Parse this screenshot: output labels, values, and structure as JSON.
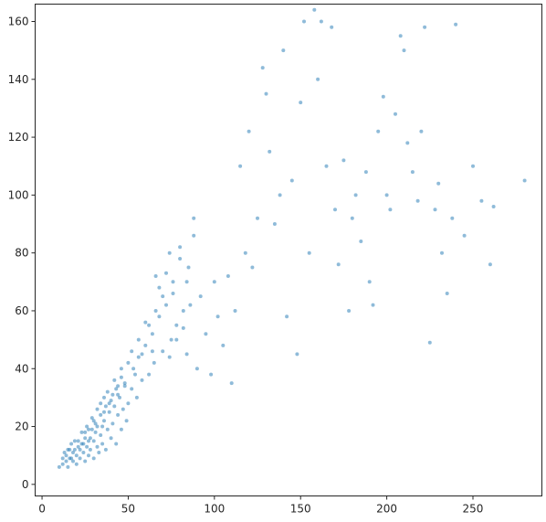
{
  "chart_data": {
    "type": "scatter",
    "title": "",
    "xlabel": "",
    "ylabel": "",
    "xlim": [
      -4,
      290
    ],
    "ylim": [
      -4,
      166
    ],
    "x_ticks": [
      0,
      50,
      100,
      150,
      200,
      250
    ],
    "y_ticks": [
      0,
      20,
      40,
      60,
      80,
      100,
      120,
      140,
      160
    ],
    "grid": false,
    "legend": "none",
    "marker_color": "#1f77b4",
    "marker_alpha": 0.5,
    "series": [
      {
        "values_note": "",
        "points": [
          [
            10,
            6
          ],
          [
            12,
            7
          ],
          [
            14,
            8
          ],
          [
            15,
            6
          ],
          [
            16,
            9
          ],
          [
            18,
            8
          ],
          [
            18,
            11
          ],
          [
            20,
            10
          ],
          [
            20,
            7
          ],
          [
            22,
            12
          ],
          [
            22,
            9
          ],
          [
            24,
            11
          ],
          [
            24,
            14
          ],
          [
            25,
            8
          ],
          [
            26,
            13
          ],
          [
            27,
            10
          ],
          [
            28,
            16
          ],
          [
            28,
            12
          ],
          [
            30,
            15
          ],
          [
            30,
            9
          ],
          [
            31,
            18
          ],
          [
            32,
            13
          ],
          [
            33,
            11
          ],
          [
            34,
            17
          ],
          [
            35,
            20
          ],
          [
            35,
            14
          ],
          [
            36,
            22
          ],
          [
            37,
            12
          ],
          [
            38,
            19
          ],
          [
            39,
            25
          ],
          [
            40,
            16
          ],
          [
            41,
            21
          ],
          [
            42,
            27
          ],
          [
            43,
            14
          ],
          [
            44,
            24
          ],
          [
            45,
            30
          ],
          [
            46,
            19
          ],
          [
            47,
            26
          ],
          [
            48,
            35
          ],
          [
            49,
            22
          ],
          [
            50,
            28
          ],
          [
            52,
            33
          ],
          [
            53,
            40
          ],
          [
            55,
            30
          ],
          [
            56,
            44
          ],
          [
            58,
            36
          ],
          [
            60,
            48
          ],
          [
            62,
            38
          ],
          [
            64,
            52
          ],
          [
            65,
            42
          ],
          [
            66,
            72
          ],
          [
            68,
            58
          ],
          [
            70,
            46
          ],
          [
            72,
            62
          ],
          [
            74,
            80
          ],
          [
            75,
            50
          ],
          [
            76,
            70
          ],
          [
            78,
            55
          ],
          [
            80,
            82
          ],
          [
            82,
            60
          ],
          [
            84,
            45
          ],
          [
            85,
            75
          ],
          [
            88,
            92
          ],
          [
            90,
            40
          ],
          [
            92,
            65
          ],
          [
            95,
            52
          ],
          [
            98,
            38
          ],
          [
            100,
            70
          ],
          [
            102,
            58
          ],
          [
            105,
            48
          ],
          [
            108,
            72
          ],
          [
            110,
            35
          ],
          [
            112,
            60
          ],
          [
            115,
            110
          ],
          [
            118,
            80
          ],
          [
            120,
            122
          ],
          [
            122,
            75
          ],
          [
            125,
            92
          ],
          [
            128,
            144
          ],
          [
            130,
            135
          ],
          [
            132,
            115
          ],
          [
            135,
            90
          ],
          [
            138,
            100
          ],
          [
            140,
            150
          ],
          [
            142,
            58
          ],
          [
            145,
            105
          ],
          [
            148,
            45
          ],
          [
            150,
            132
          ],
          [
            152,
            160
          ],
          [
            155,
            80
          ],
          [
            158,
            164
          ],
          [
            160,
            140
          ],
          [
            162,
            160
          ],
          [
            165,
            110
          ],
          [
            168,
            158
          ],
          [
            170,
            95
          ],
          [
            172,
            76
          ],
          [
            175,
            112
          ],
          [
            178,
            60
          ],
          [
            180,
            92
          ],
          [
            182,
            100
          ],
          [
            185,
            84
          ],
          [
            188,
            108
          ],
          [
            190,
            70
          ],
          [
            192,
            62
          ],
          [
            195,
            122
          ],
          [
            198,
            134
          ],
          [
            200,
            100
          ],
          [
            202,
            95
          ],
          [
            205,
            128
          ],
          [
            208,
            155
          ],
          [
            210,
            150
          ],
          [
            212,
            118
          ],
          [
            215,
            108
          ],
          [
            218,
            98
          ],
          [
            220,
            122
          ],
          [
            222,
            158
          ],
          [
            225,
            49
          ],
          [
            228,
            95
          ],
          [
            230,
            104
          ],
          [
            232,
            80
          ],
          [
            235,
            66
          ],
          [
            238,
            92
          ],
          [
            240,
            159
          ],
          [
            245,
            86
          ],
          [
            250,
            110
          ],
          [
            255,
            98
          ],
          [
            260,
            76
          ],
          [
            262,
            96
          ],
          [
            280,
            105
          ],
          [
            16,
            12
          ],
          [
            19,
            15
          ],
          [
            23,
            18
          ],
          [
            26,
            20
          ],
          [
            29,
            23
          ],
          [
            32,
            26
          ],
          [
            36,
            30
          ],
          [
            39,
            28
          ],
          [
            43,
            33
          ],
          [
            46,
            37
          ],
          [
            50,
            42
          ],
          [
            54,
            38
          ],
          [
            58,
            45
          ],
          [
            62,
            55
          ],
          [
            66,
            60
          ],
          [
            70,
            65
          ],
          [
            74,
            44
          ],
          [
            78,
            50
          ],
          [
            82,
            54
          ],
          [
            86,
            62
          ],
          [
            14,
            10
          ],
          [
            17,
            9
          ],
          [
            21,
            13
          ],
          [
            25,
            16
          ],
          [
            27,
            19
          ],
          [
            31,
            21
          ],
          [
            34,
            24
          ],
          [
            37,
            27
          ],
          [
            41,
            31
          ],
          [
            44,
            34
          ],
          [
            12,
            9
          ],
          [
            13,
            11
          ],
          [
            15,
            12
          ],
          [
            17,
            14
          ],
          [
            19,
            12
          ],
          [
            21,
            15
          ],
          [
            23,
            14
          ],
          [
            25,
            18
          ],
          [
            27,
            15
          ],
          [
            29,
            19
          ],
          [
            30,
            22
          ],
          [
            32,
            20
          ],
          [
            34,
            28
          ],
          [
            36,
            25
          ],
          [
            38,
            32
          ],
          [
            40,
            29
          ],
          [
            42,
            36
          ],
          [
            44,
            31
          ],
          [
            46,
            40
          ],
          [
            48,
            34
          ],
          [
            52,
            46
          ],
          [
            56,
            50
          ],
          [
            60,
            56
          ],
          [
            64,
            46
          ],
          [
            68,
            68
          ],
          [
            72,
            73
          ],
          [
            76,
            66
          ],
          [
            80,
            78
          ],
          [
            84,
            70
          ],
          [
            88,
            86
          ]
        ]
      }
    ]
  }
}
